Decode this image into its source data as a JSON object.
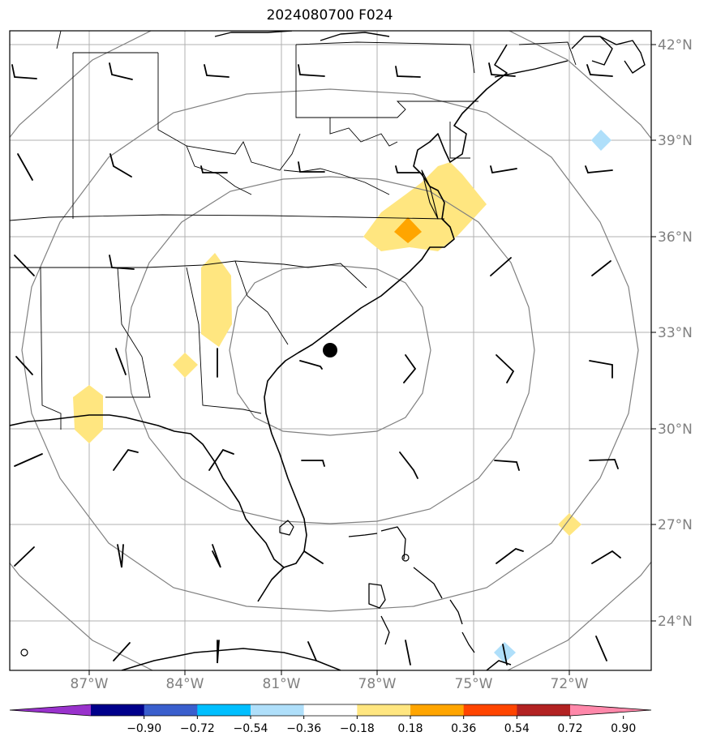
{
  "title": "2024080700 F024",
  "lat_labels": [
    "42°N",
    "39°N",
    "36°N",
    "33°N",
    "30°N",
    "27°N",
    "24°N"
  ],
  "lon_labels": [
    "87°W",
    "84°W",
    "81°W",
    "78°W",
    "75°W",
    "72°W"
  ],
  "colorbar": {
    "ticks": [
      "−0.90",
      "−0.72",
      "−0.54",
      "−0.36",
      "−0.18",
      "0.18",
      "0.36",
      "0.54",
      "0.72",
      "0.90"
    ],
    "colors": [
      "#9932cc",
      "#00008b",
      "#3a5fcd",
      "#00bfff",
      "#afdffa",
      "#ffffff",
      "#ffe680",
      "#ffa500",
      "#ff4500",
      "#b22222",
      "#ff88aa"
    ]
  },
  "storm_center": {
    "lat": 32.5,
    "lon": -79.3
  },
  "colors": {
    "grid": "#b0b0b0",
    "range_rings": "#808080",
    "coast": "#000000"
  }
}
